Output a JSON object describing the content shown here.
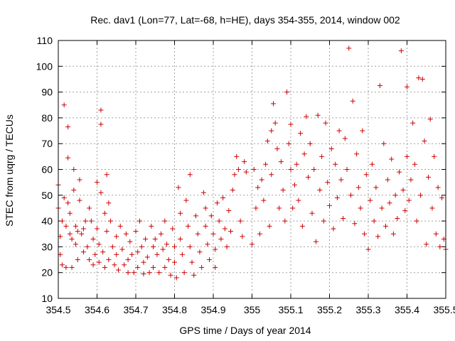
{
  "chart_data": {
    "type": "scatter",
    "title": "Rec. dav1 (Lon=77, Lat=-68, h=HE), days 354-355, 2014, window 002",
    "xlabel": "GPS time / Days of year 2014",
    "ylabel": "STEC from uqrg / TECUs",
    "xlim": [
      354.5,
      355.5
    ],
    "ylim": [
      10,
      110
    ],
    "xticks": [
      "354.5",
      "354.6",
      "354.7",
      "354.8",
      "354.9",
      "355",
      "355.1",
      "355.2",
      "355.3",
      "355.4",
      "355.5"
    ],
    "yticks": [
      "10",
      "20",
      "30",
      "40",
      "50",
      "60",
      "70",
      "80",
      "90",
      "100",
      "110"
    ],
    "grid": true,
    "marker": "plus",
    "color": "#cc0000",
    "points": [
      [
        354.5,
        54
      ],
      [
        354.5,
        45
      ],
      [
        354.505,
        34
      ],
      [
        354.505,
        27
      ],
      [
        354.51,
        23
      ],
      [
        354.51,
        40
      ],
      [
        354.515,
        85
      ],
      [
        354.515,
        49
      ],
      [
        354.52,
        22
      ],
      [
        354.52,
        38
      ],
      [
        354.525,
        76.5
      ],
      [
        354.525,
        64.5
      ],
      [
        354.525,
        47
      ],
      [
        354.53,
        43
      ],
      [
        354.53,
        35
      ],
      [
        354.535,
        33
      ],
      [
        354.535,
        22
      ],
      [
        354.54,
        60
      ],
      [
        354.54,
        52
      ],
      [
        354.545,
        38
      ],
      [
        354.545,
        31
      ],
      [
        354.55,
        25
      ],
      [
        354.55,
        36
      ],
      [
        354.555,
        56
      ],
      [
        354.555,
        48
      ],
      [
        354.56,
        35
      ],
      [
        354.565,
        37
      ],
      [
        354.565,
        28
      ],
      [
        354.57,
        40
      ],
      [
        354.575,
        30
      ],
      [
        354.58,
        25
      ],
      [
        354.58,
        45
      ],
      [
        354.585,
        40
      ],
      [
        354.59,
        33
      ],
      [
        354.59,
        23
      ],
      [
        354.595,
        27
      ],
      [
        354.6,
        55
      ],
      [
        354.6,
        37
      ],
      [
        354.605,
        31
      ],
      [
        354.605,
        24
      ],
      [
        354.61,
        83
      ],
      [
        354.61,
        77.5
      ],
      [
        354.61,
        51
      ],
      [
        354.615,
        28
      ],
      [
        354.62,
        43
      ],
      [
        354.62,
        22
      ],
      [
        354.625,
        58
      ],
      [
        354.625,
        36
      ],
      [
        354.63,
        47
      ],
      [
        354.63,
        25
      ],
      [
        354.635,
        40
      ],
      [
        354.64,
        30
      ],
      [
        354.645,
        23
      ],
      [
        354.65,
        34
      ],
      [
        354.65,
        27
      ],
      [
        354.655,
        21
      ],
      [
        354.66,
        38
      ],
      [
        354.665,
        29
      ],
      [
        354.67,
        23
      ],
      [
        354.675,
        35
      ],
      [
        354.68,
        25
      ],
      [
        354.68,
        20
      ],
      [
        354.685,
        32
      ],
      [
        354.69,
        27
      ],
      [
        354.695,
        20
      ],
      [
        354.7,
        36
      ],
      [
        354.705,
        28
      ],
      [
        354.705,
        22
      ],
      [
        354.71,
        40
      ],
      [
        354.715,
        30
      ],
      [
        354.72,
        24
      ],
      [
        354.72,
        19.5
      ],
      [
        354.725,
        33
      ],
      [
        354.73,
        26
      ],
      [
        354.735,
        20
      ],
      [
        354.74,
        38
      ],
      [
        354.745,
        30
      ],
      [
        354.745,
        22
      ],
      [
        354.75,
        33
      ],
      [
        354.755,
        27
      ],
      [
        354.76,
        20
      ],
      [
        354.765,
        35
      ],
      [
        354.77,
        29
      ],
      [
        354.775,
        22
      ],
      [
        354.775,
        40
      ],
      [
        354.78,
        31
      ],
      [
        354.785,
        25
      ],
      [
        354.79,
        19
      ],
      [
        354.795,
        37
      ],
      [
        354.8,
        30
      ],
      [
        354.8,
        24
      ],
      [
        354.805,
        18
      ],
      [
        354.81,
        53
      ],
      [
        354.815,
        43
      ],
      [
        354.815,
        33
      ],
      [
        354.82,
        27
      ],
      [
        354.825,
        20
      ],
      [
        354.83,
        48
      ],
      [
        354.835,
        38
      ],
      [
        354.84,
        58
      ],
      [
        354.84,
        30
      ],
      [
        354.845,
        24
      ],
      [
        354.85,
        19
      ],
      [
        354.855,
        42
      ],
      [
        354.86,
        35
      ],
      [
        354.865,
        28
      ],
      [
        354.87,
        22
      ],
      [
        354.875,
        51
      ],
      [
        354.88,
        45
      ],
      [
        354.88,
        38
      ],
      [
        354.885,
        31
      ],
      [
        354.89,
        25
      ],
      [
        354.895,
        42
      ],
      [
        354.9,
        35
      ],
      [
        354.905,
        29
      ],
      [
        354.905,
        22
      ],
      [
        354.91,
        47
      ],
      [
        354.915,
        40
      ],
      [
        354.92,
        33
      ],
      [
        354.925,
        49
      ],
      [
        354.93,
        37
      ],
      [
        354.935,
        30
      ],
      [
        354.94,
        44
      ],
      [
        354.945,
        36
      ],
      [
        354.95,
        52
      ],
      [
        354.955,
        58
      ],
      [
        354.96,
        65
      ],
      [
        354.965,
        60
      ],
      [
        354.97,
        40
      ],
      [
        354.975,
        34
      ],
      [
        354.98,
        63
      ],
      [
        354.985,
        59
      ],
      [
        355.0,
        31
      ],
      [
        355.005,
        60
      ],
      [
        355.01,
        45
      ],
      [
        355.015,
        53
      ],
      [
        355.02,
        35
      ],
      [
        355.025,
        56
      ],
      [
        355.03,
        48
      ],
      [
        355.035,
        62
      ],
      [
        355.04,
        71
      ],
      [
        355.045,
        38
      ],
      [
        355.05,
        75
      ],
      [
        355.05,
        58
      ],
      [
        355.055,
        85.5
      ],
      [
        355.06,
        78
      ],
      [
        355.065,
        68
      ],
      [
        355.07,
        45
      ],
      [
        355.075,
        63
      ],
      [
        355.08,
        52
      ],
      [
        355.085,
        40
      ],
      [
        355.09,
        90
      ],
      [
        355.095,
        70
      ],
      [
        355.1,
        77.5
      ],
      [
        355.1,
        60
      ],
      [
        355.105,
        45
      ],
      [
        355.11,
        54
      ],
      [
        355.115,
        62
      ],
      [
        355.12,
        48
      ],
      [
        355.125,
        74
      ],
      [
        355.13,
        38
      ],
      [
        355.135,
        66
      ],
      [
        355.14,
        80.5
      ],
      [
        355.145,
        57
      ],
      [
        355.15,
        70
      ],
      [
        355.155,
        43
      ],
      [
        355.16,
        60
      ],
      [
        355.165,
        32
      ],
      [
        355.17,
        81
      ],
      [
        355.175,
        52
      ],
      [
        355.18,
        65
      ],
      [
        355.185,
        40
      ],
      [
        355.19,
        78
      ],
      [
        355.195,
        55
      ],
      [
        355.2,
        46
      ],
      [
        355.205,
        68
      ],
      [
        355.21,
        37
      ],
      [
        355.215,
        62
      ],
      [
        355.22,
        49
      ],
      [
        355.225,
        75
      ],
      [
        355.23,
        56
      ],
      [
        355.235,
        41
      ],
      [
        355.24,
        72
      ],
      [
        355.245,
        60
      ],
      [
        355.25,
        107
      ],
      [
        355.255,
        50
      ],
      [
        355.26,
        86.5
      ],
      [
        355.265,
        39
      ],
      [
        355.27,
        66
      ],
      [
        355.275,
        53
      ],
      [
        355.28,
        45
      ],
      [
        355.285,
        75
      ],
      [
        355.29,
        35
      ],
      [
        355.295,
        58
      ],
      [
        355.3,
        29
      ],
      [
        355.305,
        48
      ],
      [
        355.31,
        62
      ],
      [
        355.315,
        40
      ],
      [
        355.32,
        53
      ],
      [
        355.325,
        34
      ],
      [
        355.33,
        92.5
      ],
      [
        355.335,
        45
      ],
      [
        355.34,
        70
      ],
      [
        355.345,
        38
      ],
      [
        355.35,
        56
      ],
      [
        355.355,
        47
      ],
      [
        355.36,
        64
      ],
      [
        355.365,
        35
      ],
      [
        355.37,
        50
      ],
      [
        355.375,
        41
      ],
      [
        355.38,
        59
      ],
      [
        355.385,
        106
      ],
      [
        355.39,
        52
      ],
      [
        355.395,
        44
      ],
      [
        355.4,
        92
      ],
      [
        355.4,
        65
      ],
      [
        355.405,
        48
      ],
      [
        355.41,
        56
      ],
      [
        355.415,
        78
      ],
      [
        355.42,
        62
      ],
      [
        355.425,
        40
      ],
      [
        355.43,
        95.5
      ],
      [
        355.435,
        50
      ],
      [
        355.44,
        95
      ],
      [
        355.445,
        71
      ],
      [
        355.45,
        31
      ],
      [
        355.455,
        57
      ],
      [
        355.46,
        79.5
      ],
      [
        355.465,
        45
      ],
      [
        355.47,
        65
      ],
      [
        355.475,
        35
      ],
      [
        355.48,
        53
      ],
      [
        355.485,
        30
      ],
      [
        355.49,
        49
      ],
      [
        355.495,
        33
      ],
      [
        355.5,
        29
      ]
    ]
  }
}
